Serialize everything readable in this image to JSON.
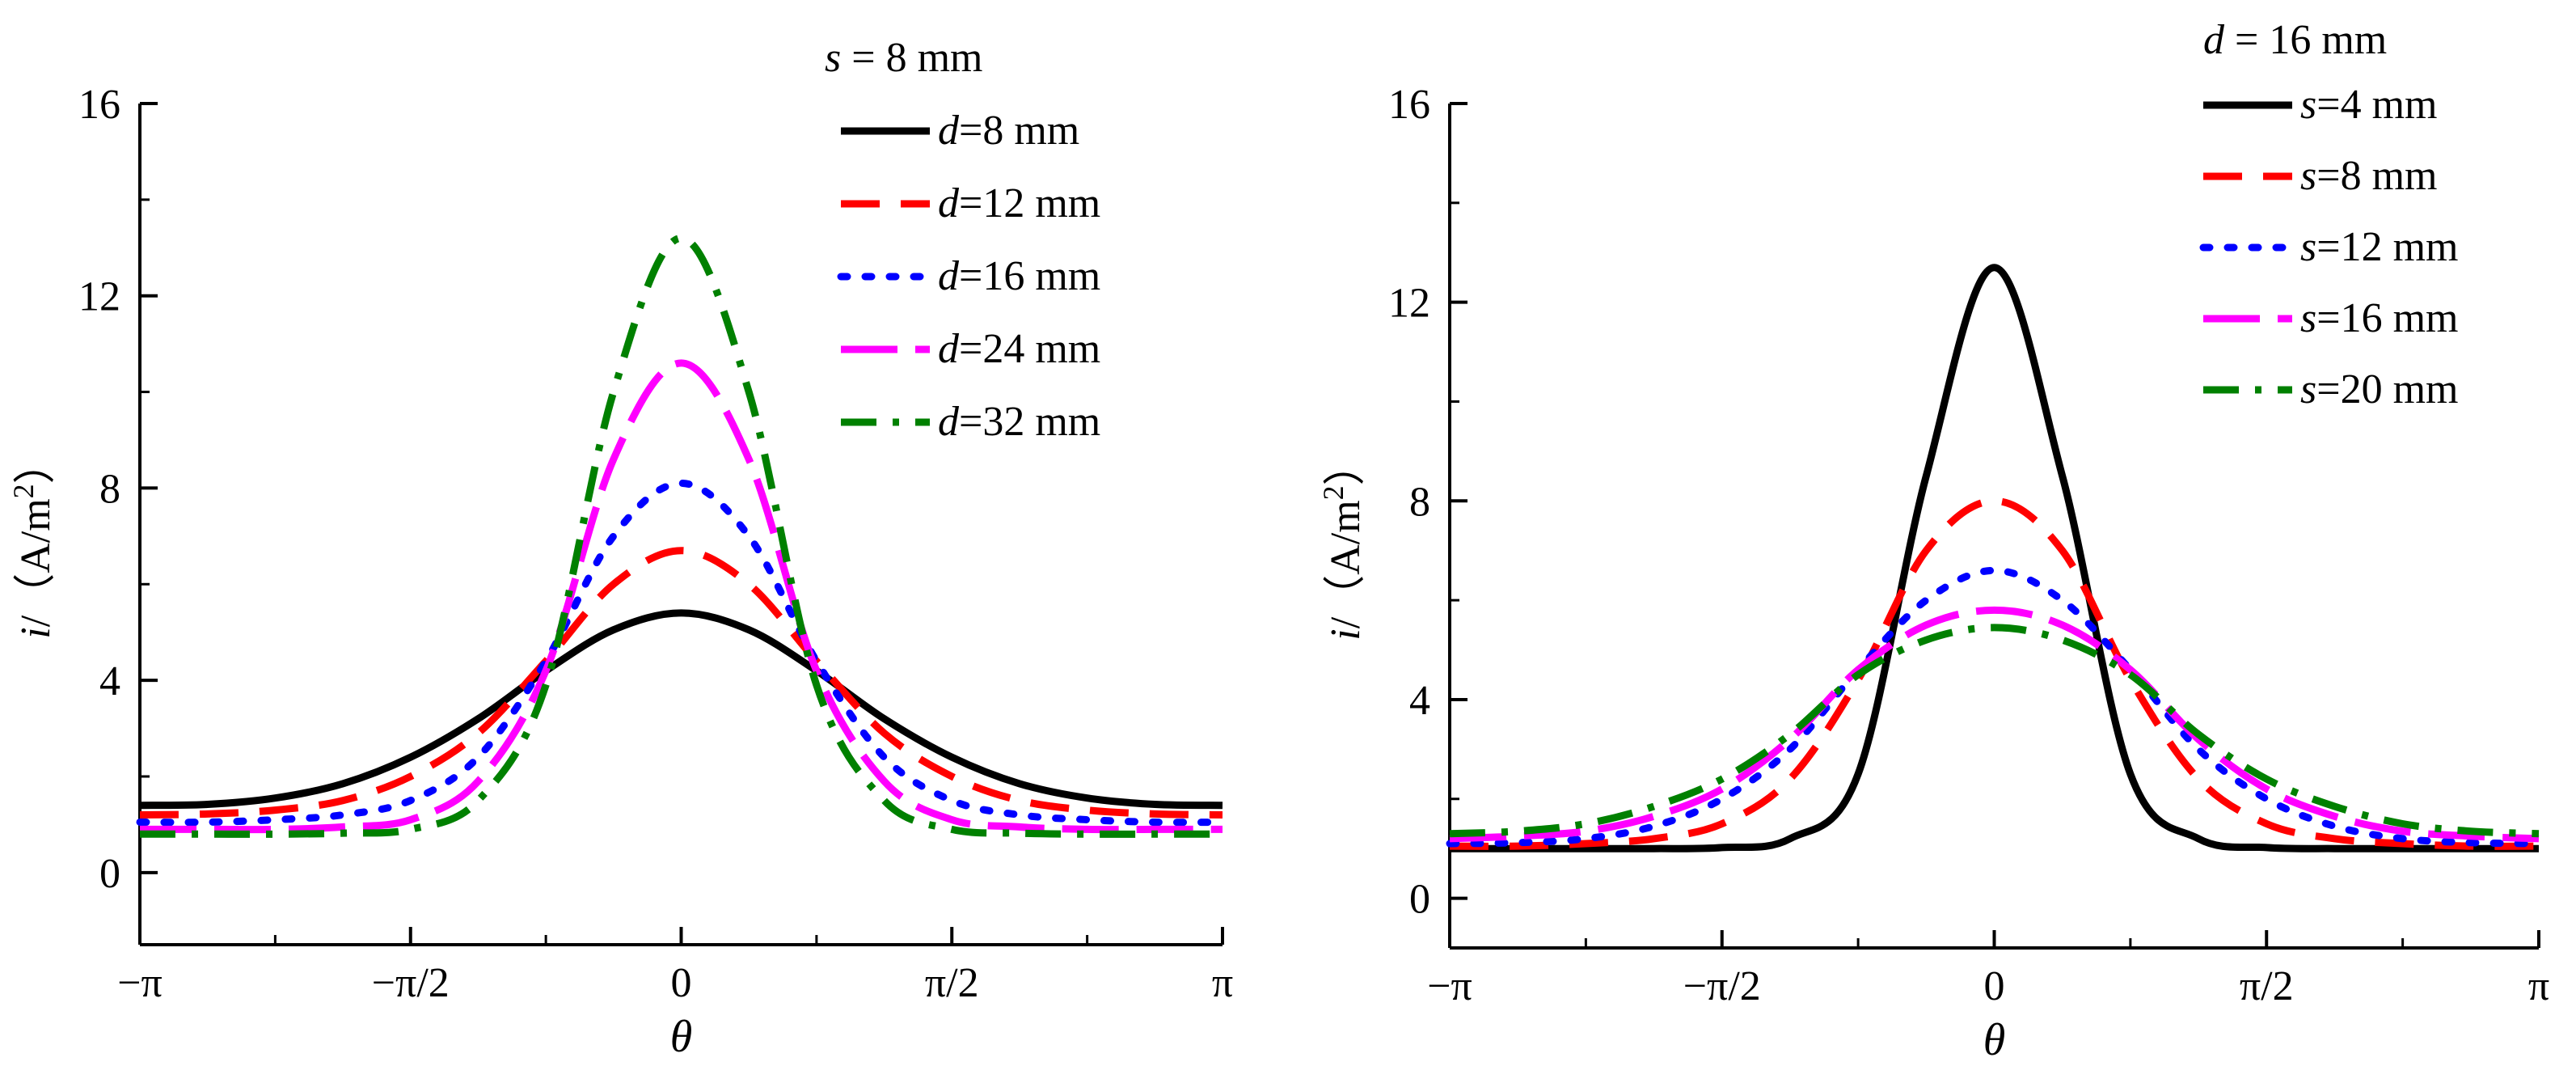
{
  "chart_data": [
    {
      "type": "line",
      "title": "",
      "xlabel": "θ",
      "ylabel": "i/（A/m²）",
      "ylabel_var": "i",
      "ylabel_unit": "/（A/m",
      "ylabel_sup": "2",
      "ylabel_close": "）",
      "xlim": [
        -3.1416,
        3.1416
      ],
      "ylim": [
        -1.5,
        16
      ],
      "xticks": [
        {
          "value": -3.1416,
          "label": "−π"
        },
        {
          "value": -1.5708,
          "label": "−π/2"
        },
        {
          "value": 0,
          "label": "0"
        },
        {
          "value": 1.5708,
          "label": "π/2"
        },
        {
          "value": 3.1416,
          "label": "π"
        }
      ],
      "yticks": [
        {
          "value": 0,
          "label": "0"
        },
        {
          "value": 4,
          "label": "4"
        },
        {
          "value": 8,
          "label": "8"
        },
        {
          "value": 12,
          "label": "12"
        },
        {
          "value": 16,
          "label": "16"
        }
      ],
      "legend_title": {
        "var": "s",
        "text": " = 8 mm"
      },
      "legend_position": "top-right",
      "x": [
        -3.1416,
        -2.7489,
        -2.3562,
        -1.9635,
        -1.5708,
        -1.1781,
        -0.7854,
        -0.3927,
        0,
        0.3927,
        0.7854,
        1.1781,
        1.5708,
        1.9635,
        2.3562,
        2.7489,
        3.1416
      ],
      "series": [
        {
          "name_var": "d",
          "name_text": "=8 mm",
          "color": "#000000",
          "dash": "solid",
          "values": [
            1.4,
            1.42,
            1.55,
            1.85,
            2.4,
            3.2,
            4.2,
            5.05,
            5.4,
            5.05,
            4.2,
            3.2,
            2.4,
            1.85,
            1.55,
            1.42,
            1.4
          ]
        },
        {
          "name_var": "d",
          "name_text": "=12 mm",
          "color": "#ff0000",
          "dash": "dash",
          "values": [
            1.2,
            1.22,
            1.3,
            1.5,
            2.0,
            2.9,
            4.4,
            6.0,
            6.7,
            6.0,
            4.4,
            2.9,
            2.0,
            1.5,
            1.3,
            1.22,
            1.2
          ]
        },
        {
          "name_var": "d",
          "name_text": "=16 mm",
          "color": "#0000ff",
          "dash": "dot",
          "values": [
            1.05,
            1.05,
            1.1,
            1.2,
            1.5,
            2.4,
            4.4,
            7.0,
            8.1,
            7.0,
            4.4,
            2.4,
            1.5,
            1.2,
            1.1,
            1.05,
            1.05
          ]
        },
        {
          "name_var": "d",
          "name_text": "=24 mm",
          "color": "#ff00ff",
          "dash": "longdash",
          "values": [
            0.9,
            0.9,
            0.9,
            0.95,
            1.1,
            1.9,
            4.2,
            8.6,
            10.6,
            8.6,
            4.2,
            1.9,
            1.1,
            0.95,
            0.9,
            0.9,
            0.9
          ]
        },
        {
          "name_var": "d",
          "name_text": "=32 mm",
          "color": "#008000",
          "dash": "dashdot",
          "values": [
            0.8,
            0.8,
            0.8,
            0.82,
            0.9,
            1.5,
            3.9,
            10.0,
            13.2,
            10.0,
            3.9,
            1.5,
            0.9,
            0.82,
            0.8,
            0.8,
            0.8
          ]
        }
      ]
    },
    {
      "type": "line",
      "title": "",
      "xlabel": "θ",
      "ylabel": "i/（A/m²）",
      "ylabel_var": "i",
      "ylabel_unit": "/（A/m",
      "ylabel_sup": "2",
      "ylabel_close": "）",
      "xlim": [
        -3.1416,
        3.1416
      ],
      "ylim": [
        -1.0,
        16
      ],
      "xticks": [
        {
          "value": -3.1416,
          "label": "−π"
        },
        {
          "value": -1.5708,
          "label": "−π/2"
        },
        {
          "value": 0,
          "label": "0"
        },
        {
          "value": 1.5708,
          "label": "π/2"
        },
        {
          "value": 3.1416,
          "label": "π"
        }
      ],
      "yticks": [
        {
          "value": 0,
          "label": "0"
        },
        {
          "value": 4,
          "label": "4"
        },
        {
          "value": 8,
          "label": "8"
        },
        {
          "value": 12,
          "label": "12"
        },
        {
          "value": 16,
          "label": "16"
        }
      ],
      "legend_title": {
        "var": "d",
        "text": " = 16 mm"
      },
      "legend_position": "top-right",
      "x": [
        -3.1416,
        -2.7489,
        -2.3562,
        -1.9635,
        -1.5708,
        -1.1781,
        -0.7854,
        -0.3927,
        0,
        0.3927,
        0.7854,
        1.1781,
        1.5708,
        1.9635,
        2.3562,
        2.7489,
        3.1416
      ],
      "series": [
        {
          "name_var": "s",
          "name_text": "=4 mm",
          "color": "#000000",
          "dash": "solid",
          "values": [
            1.0,
            1.0,
            1.0,
            1.0,
            1.02,
            1.2,
            2.5,
            8.5,
            12.7,
            8.5,
            2.5,
            1.2,
            1.02,
            1.0,
            1.0,
            1.0,
            1.0
          ]
        },
        {
          "name_var": "s",
          "name_text": "=8 mm",
          "color": "#ff0000",
          "dash": "dash",
          "values": [
            1.05,
            1.05,
            1.1,
            1.2,
            1.5,
            2.4,
            4.4,
            7.0,
            8.0,
            7.0,
            4.4,
            2.4,
            1.5,
            1.2,
            1.1,
            1.05,
            1.05
          ]
        },
        {
          "name_var": "s",
          "name_text": "=12 mm",
          "color": "#0000ff",
          "dash": "dot",
          "values": [
            1.1,
            1.12,
            1.2,
            1.45,
            2.0,
            3.0,
            4.6,
            6.0,
            6.6,
            6.0,
            4.6,
            3.0,
            2.0,
            1.45,
            1.2,
            1.12,
            1.1
          ]
        },
        {
          "name_var": "s",
          "name_text": "=16 mm",
          "color": "#ff00ff",
          "dash": "longdash",
          "values": [
            1.2,
            1.25,
            1.35,
            1.65,
            2.2,
            3.2,
            4.6,
            5.5,
            5.8,
            5.5,
            4.6,
            3.2,
            2.2,
            1.65,
            1.35,
            1.25,
            1.2
          ]
        },
        {
          "name_var": "s",
          "name_text": "=20 mm",
          "color": "#008000",
          "dash": "dashdot",
          "values": [
            1.3,
            1.35,
            1.5,
            1.85,
            2.4,
            3.3,
            4.5,
            5.2,
            5.45,
            5.2,
            4.5,
            3.3,
            2.4,
            1.85,
            1.5,
            1.35,
            1.3
          ]
        }
      ]
    }
  ]
}
